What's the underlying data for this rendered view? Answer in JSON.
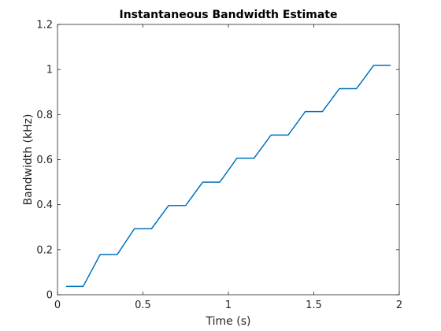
{
  "chart_data": {
    "type": "line",
    "title": "Instantaneous Bandwidth Estimate",
    "xlabel": "Time (s)",
    "ylabel": "Bandwidth (kHz)",
    "xlim": [
      0,
      2
    ],
    "ylim": [
      0,
      1.2
    ],
    "xticks": [
      0,
      0.5,
      1,
      1.5,
      2
    ],
    "xtick_labels": [
      "0",
      "0.5",
      "1",
      "1.5",
      "2"
    ],
    "yticks": [
      0,
      0.2,
      0.4,
      0.6,
      0.8,
      1,
      1.2
    ],
    "ytick_labels": [
      "0",
      "0.2",
      "0.4",
      "0.6",
      "0.8",
      "1",
      "1.2"
    ],
    "grid": false,
    "series": [
      {
        "color": "#0072BD",
        "x": [
          0.05,
          0.15,
          0.25,
          0.35,
          0.45,
          0.55,
          0.65,
          0.75,
          0.85,
          0.95,
          1.05,
          1.15,
          1.25,
          1.35,
          1.45,
          1.55,
          1.65,
          1.75,
          1.85,
          1.95
        ],
        "y": [
          0.037,
          0.037,
          0.179,
          0.179,
          0.293,
          0.293,
          0.396,
          0.396,
          0.5,
          0.5,
          0.606,
          0.606,
          0.709,
          0.709,
          0.813,
          0.813,
          0.915,
          0.915,
          1.018,
          1.018
        ]
      }
    ]
  }
}
